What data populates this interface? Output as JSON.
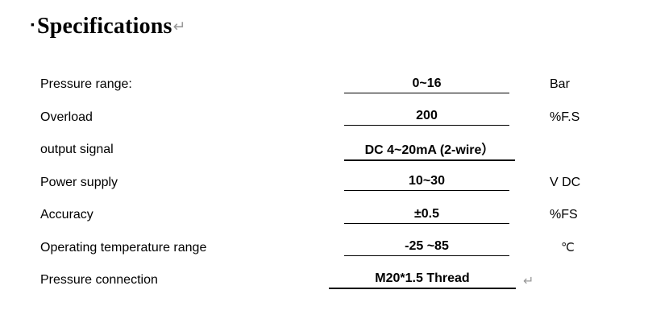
{
  "title": {
    "bullet": "▪",
    "text": "Specifications",
    "return_mark": "↵"
  },
  "specs": {
    "rows": [
      {
        "label": "Pressure range:",
        "value": "0~16",
        "unit": "Bar"
      },
      {
        "label": "Overload",
        "value": "200",
        "unit": "%F.S"
      },
      {
        "label": "output signal",
        "value": "DC 4~20mA (2-wire）",
        "unit": ""
      },
      {
        "label": "Power supply",
        "value": "10~30",
        "unit": "V DC"
      },
      {
        "label": "Accuracy",
        "value": "±0.5",
        "unit": "%FS"
      },
      {
        "label": "Operating temperature range",
        "value": "-25 ~85",
        "unit": "℃"
      },
      {
        "label": "Pressure connection",
        "value": "M20*1.5 Thread",
        "unit": "",
        "return_mark": "↵"
      }
    ]
  },
  "colors": {
    "text": "#000000",
    "underline": "#000000",
    "return_mark": "#9a9a9a",
    "background": "#ffffff"
  }
}
